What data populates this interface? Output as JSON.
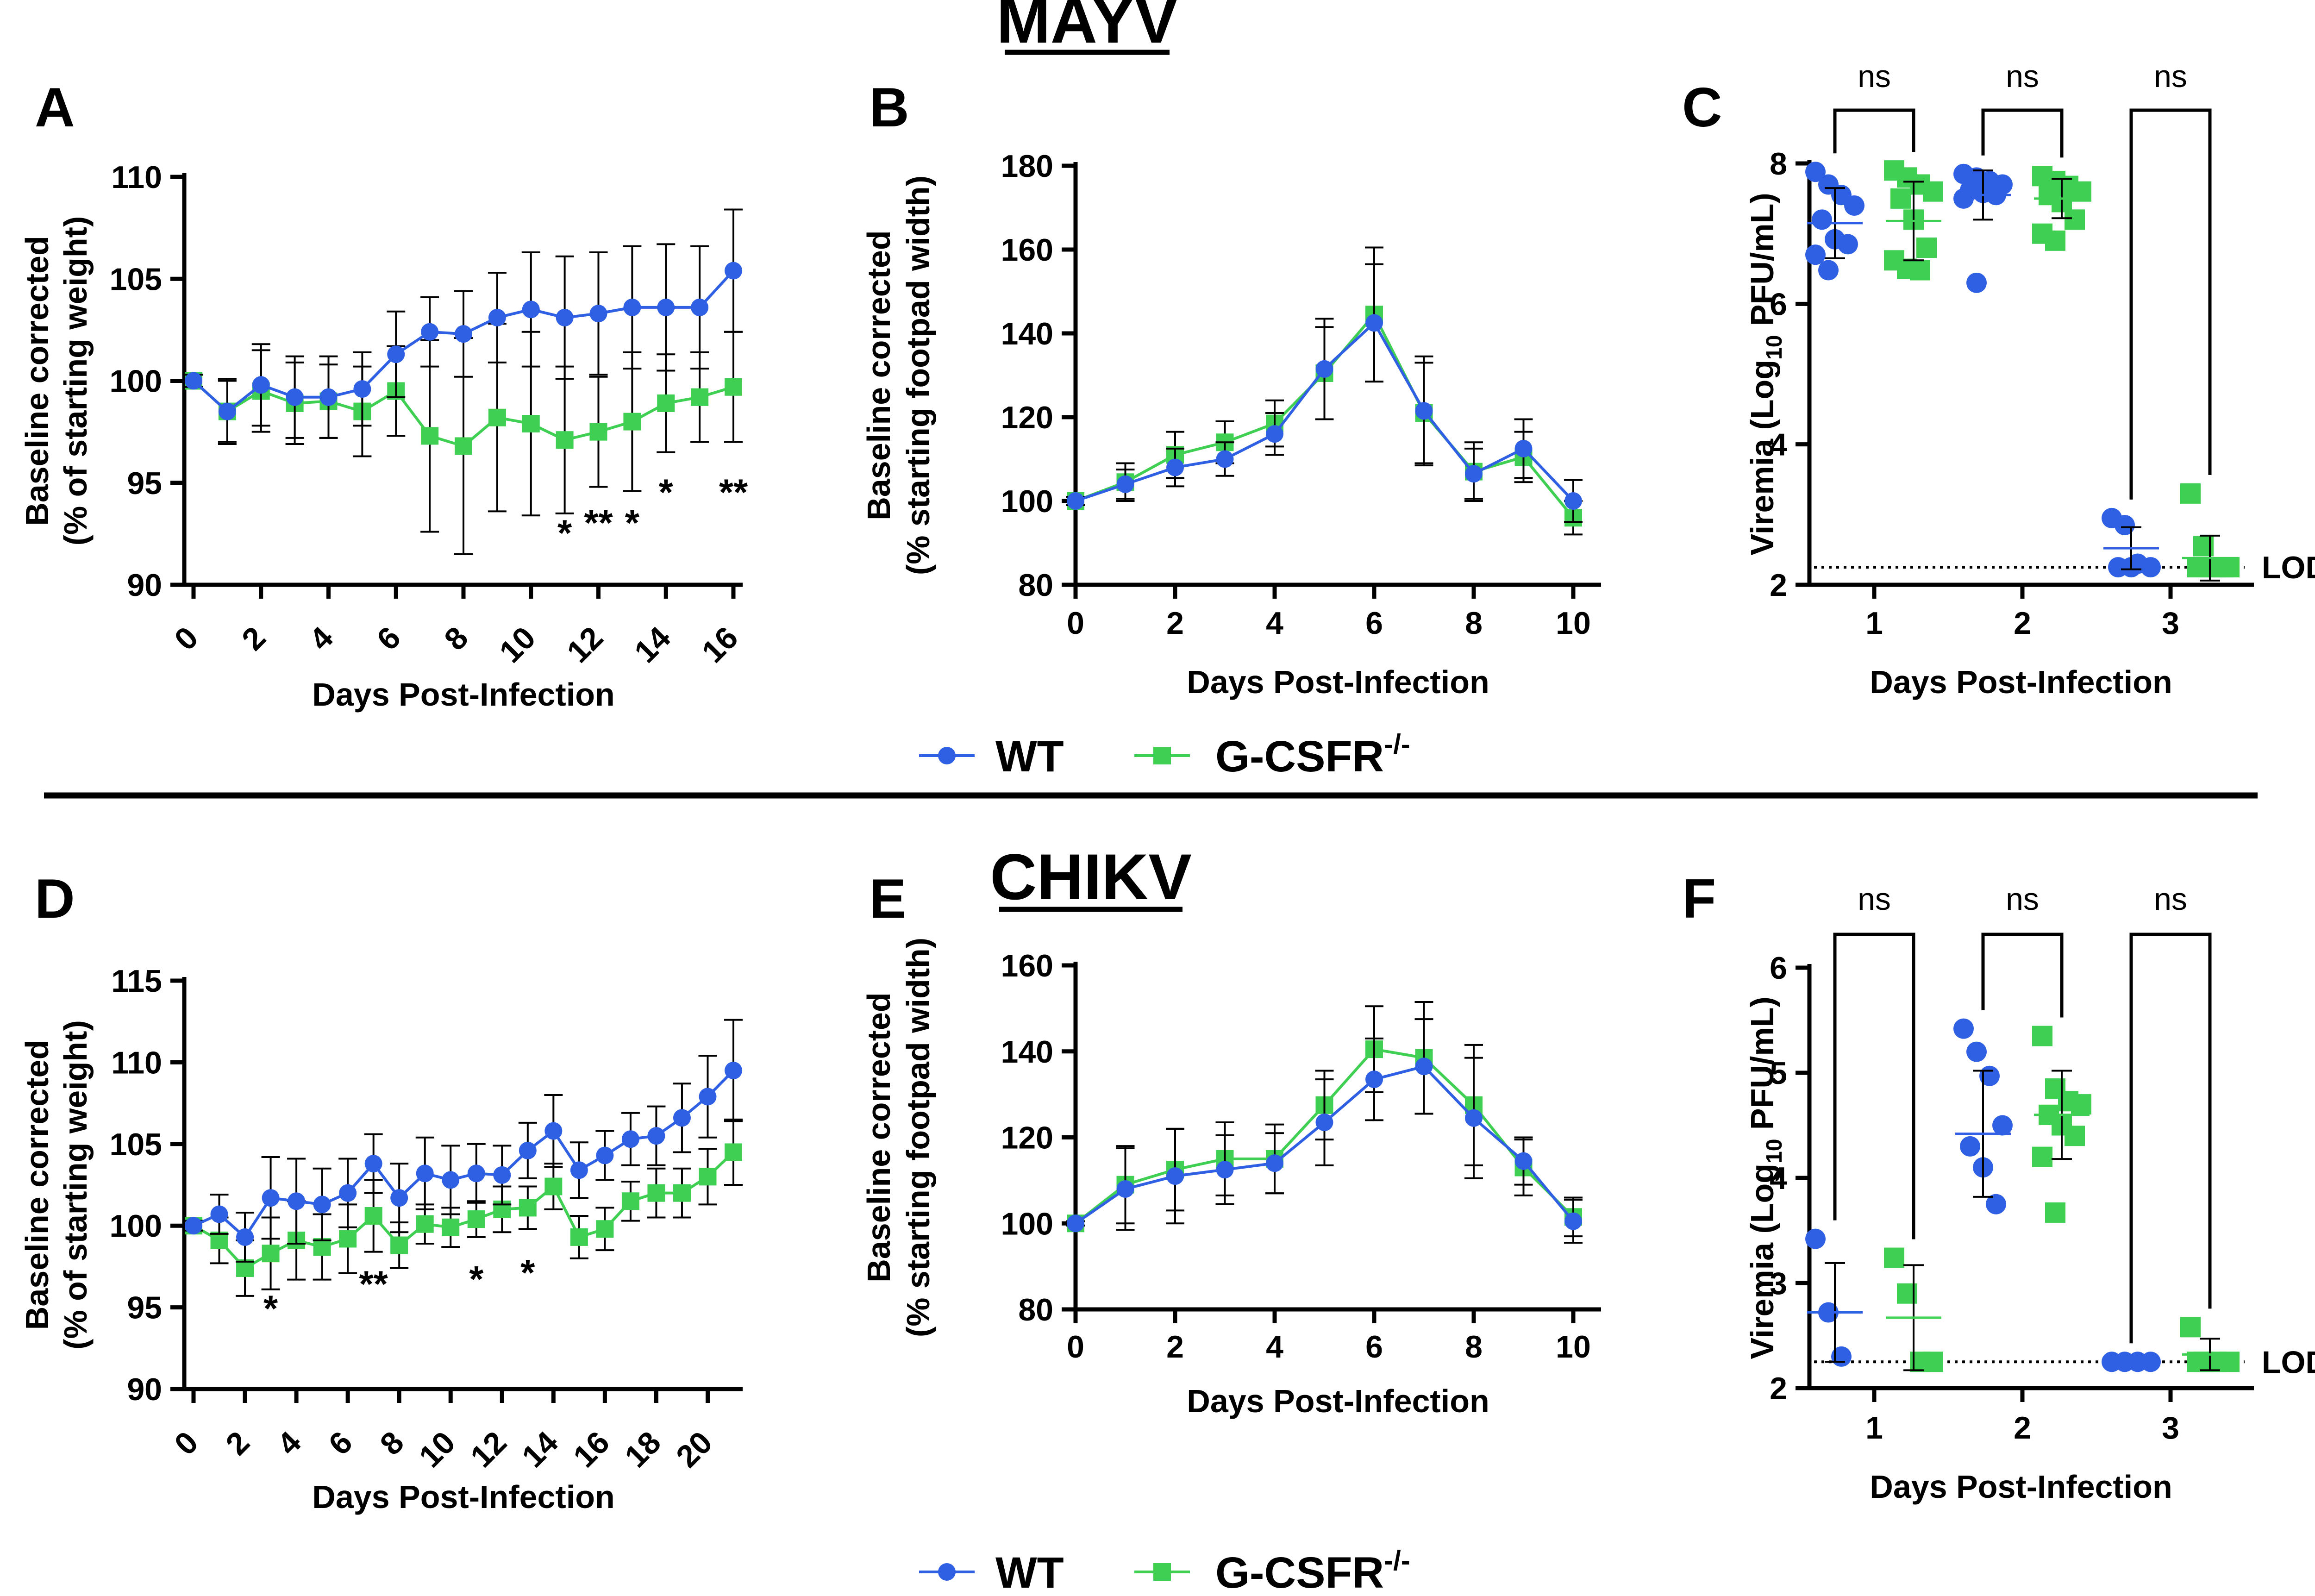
{
  "colors": {
    "wt": "#2f5fe3",
    "gcsfr": "#3fcf52",
    "axis": "#000000"
  },
  "top_title": "MAYV",
  "bottom_title": "CHIKV",
  "legend": {
    "wt": "WT",
    "gcsfr": "G-CSFR",
    "gcsfr_sup": "-/-"
  },
  "chart_data": [
    {
      "id": "A",
      "type": "line",
      "panel_label": "A",
      "ylabel1": "Baseline corrected",
      "ylabel2": "(% of starting weight)",
      "xlabel": "Days Post-Infection",
      "ylim": [
        90,
        110
      ],
      "yticks": [
        90,
        95,
        100,
        105,
        110
      ],
      "xlim": [
        0,
        16
      ],
      "xticks": [
        0,
        2,
        4,
        6,
        8,
        10,
        12,
        14,
        16
      ],
      "x": [
        0,
        1,
        2,
        3,
        4,
        5,
        6,
        7,
        8,
        9,
        10,
        11,
        12,
        13,
        14,
        15,
        16
      ],
      "series": [
        {
          "name": "WT",
          "values": [
            100,
            98.5,
            99.8,
            99.2,
            99.2,
            99.6,
            101.3,
            102.4,
            102.3,
            103.1,
            103.5,
            103.1,
            103.3,
            103.6,
            103.6,
            103.6,
            105.4
          ],
          "err": [
            0.3,
            1.5,
            2,
            2,
            2,
            1.8,
            2.1,
            1.7,
            2.1,
            2.2,
            2.8,
            3,
            3,
            3,
            3.1,
            3,
            3
          ]
        },
        {
          "name": "G-CSFR-/-",
          "values": [
            100,
            98.5,
            99.5,
            98.9,
            99,
            98.5,
            99.5,
            97.3,
            96.8,
            98.2,
            97.9,
            97.1,
            97.5,
            98,
            98.9,
            99.2,
            99.7
          ],
          "err": [
            0.3,
            1.6,
            2,
            2,
            1.8,
            2.2,
            2.2,
            4.7,
            5.3,
            4.6,
            4.5,
            3.6,
            2.7,
            3.4,
            2.4,
            2.2,
            2.7
          ]
        }
      ],
      "annotations": [
        {
          "x": 11,
          "y": 92.6,
          "text": "*"
        },
        {
          "x": 12,
          "y": 93.1,
          "text": "**"
        },
        {
          "x": 13,
          "y": 93.1,
          "text": "*"
        },
        {
          "x": 14,
          "y": 94.6,
          "text": "*"
        },
        {
          "x": 16,
          "y": 94.6,
          "text": "**"
        }
      ]
    },
    {
      "id": "B",
      "type": "line",
      "panel_label": "B",
      "ylabel1": "Baseline corrected",
      "ylabel2": "(% starting footpad width)",
      "xlabel": "Days Post-Infection",
      "ylim": [
        80,
        180
      ],
      "yticks": [
        80,
        100,
        120,
        140,
        160,
        180
      ],
      "xlim": [
        0,
        10
      ],
      "xticks": [
        0,
        2,
        4,
        6,
        8,
        10
      ],
      "x": [
        0,
        1,
        2,
        3,
        4,
        5,
        6,
        7,
        8,
        9,
        10
      ],
      "series": [
        {
          "name": "WT",
          "values": [
            100,
            104,
            108,
            110,
            116,
            131.5,
            142.5,
            121.5,
            106.5,
            112.5,
            100
          ],
          "err": [
            1,
            3.5,
            4.5,
            4,
            5,
            12,
            14,
            13,
            6,
            7,
            5
          ]
        },
        {
          "name": "G-CSFR-/-",
          "values": [
            100,
            104.5,
            111,
            114,
            118.5,
            130.5,
            144.5,
            121,
            107,
            110.5,
            96
          ],
          "err": [
            1,
            4.5,
            5.5,
            5,
            5.5,
            11,
            16,
            12,
            7,
            6,
            4
          ]
        }
      ]
    },
    {
      "id": "C",
      "type": "scatter",
      "panel_label": "C",
      "ylabel": "Viremia (Log10 PFU/mL)",
      "ylabel_main": "Viremia (Log",
      "ylabel_sub": "10",
      "ylabel_end": " PFU/mL)",
      "xlabel": "Days Post-Infection",
      "ylim": [
        2,
        8
      ],
      "yticks": [
        2,
        4,
        6,
        8
      ],
      "categories": [
        "1",
        "2",
        "3"
      ],
      "lod": 2.25,
      "lod_label": "LOD",
      "groups": [
        {
          "name": "WT",
          "day": 1,
          "points": [
            7.88,
            7.7,
            7.55,
            7.4,
            7.2,
            6.92,
            6.85,
            6.7,
            6.48
          ],
          "mean": 7.15,
          "sd": 0.5
        },
        {
          "name": "G-CSFR-/-",
          "day": 1,
          "points": [
            7.9,
            7.8,
            7.7,
            7.6,
            7.5,
            7.2,
            6.8,
            6.62,
            6.5,
            6.48
          ],
          "mean": 7.18,
          "sd": 0.56
        },
        {
          "name": "WT",
          "day": 2,
          "points": [
            7.85,
            7.8,
            7.75,
            7.7,
            7.62,
            7.58,
            7.55,
            7.5,
            6.3
          ],
          "mean": 7.55,
          "sd": 0.35
        },
        {
          "name": "G-CSFR-/-",
          "day": 2,
          "points": [
            7.82,
            7.75,
            7.68,
            7.6,
            7.55,
            7.45,
            7.2,
            7.0,
            6.9
          ],
          "mean": 7.5,
          "sd": 0.28
        },
        {
          "name": "WT",
          "day": 3,
          "points": [
            2.95,
            2.85,
            2.3,
            2.25,
            2.25,
            2.25
          ],
          "mean": 2.52,
          "sd": 0.3
        },
        {
          "name": "G-CSFR-/-",
          "day": 3,
          "points": [
            3.3,
            2.55,
            2.25,
            2.25,
            2.25,
            2.25,
            2.25
          ],
          "mean": 2.38,
          "sd": 0.32
        }
      ],
      "significance": [
        "ns",
        "ns",
        "ns"
      ]
    },
    {
      "id": "D",
      "type": "line",
      "panel_label": "D",
      "ylabel1": "Baseline corrected",
      "ylabel2": "(% of starting weight)",
      "xlabel": "Days Post-Infection",
      "ylim": [
        90,
        115
      ],
      "yticks": [
        90,
        95,
        100,
        105,
        110,
        115
      ],
      "xlim": [
        0,
        21
      ],
      "xticks": [
        0,
        2,
        4,
        6,
        8,
        10,
        12,
        14,
        16,
        18,
        20
      ],
      "x": [
        0,
        1,
        2,
        3,
        4,
        5,
        6,
        7,
        8,
        9,
        10,
        11,
        12,
        13,
        14,
        15,
        16,
        17,
        18,
        19,
        20,
        21
      ],
      "series": [
        {
          "name": "WT",
          "values": [
            100,
            100.7,
            99.3,
            101.7,
            101.5,
            101.3,
            102,
            103.8,
            101.7,
            103.2,
            102.8,
            103.2,
            103.1,
            104.6,
            105.8,
            103.4,
            104.3,
            105.3,
            105.5,
            106.6,
            107.9,
            109.5
          ],
          "err": [
            0.3,
            1.2,
            1.5,
            2.5,
            2.6,
            2.2,
            2.1,
            1.8,
            2.1,
            2.2,
            2.1,
            1.8,
            1.8,
            1.7,
            2.2,
            1.7,
            1.5,
            1.6,
            1.8,
            2.1,
            2.5,
            3.1
          ]
        },
        {
          "name": "G-CSFR-/-",
          "values": [
            100,
            99.1,
            97.4,
            98.3,
            99.1,
            98.7,
            99.2,
            100.6,
            98.8,
            100.1,
            99.9,
            100.4,
            101,
            101.1,
            102.4,
            99.3,
            99.8,
            101.5,
            102,
            102,
            103,
            104.5
          ],
          "err": [
            0.3,
            1.4,
            1.7,
            2.2,
            2.4,
            2,
            2.1,
            2.2,
            1.4,
            1.2,
            1.2,
            1.1,
            1.4,
            1.3,
            1.4,
            1.3,
            1.3,
            1.2,
            1.5,
            1.5,
            1.7,
            2
          ]
        }
      ],
      "annotations": [
        {
          "x": 3,
          "y": 95,
          "text": "*"
        },
        {
          "x": 7,
          "y": 96.5,
          "text": "**"
        },
        {
          "x": 11,
          "y": 96.8,
          "text": "*"
        },
        {
          "x": 13,
          "y": 97.2,
          "text": "*"
        }
      ]
    },
    {
      "id": "E",
      "type": "line",
      "panel_label": "E",
      "ylabel1": "Baseline corrected",
      "ylabel2": "(% starting footpad width)",
      "xlabel": "Days Post-Infection",
      "ylim": [
        80,
        160
      ],
      "yticks": [
        80,
        100,
        120,
        140,
        160
      ],
      "xlim": [
        0,
        10
      ],
      "xticks": [
        0,
        2,
        4,
        6,
        8,
        10
      ],
      "x": [
        0,
        1,
        2,
        3,
        4,
        5,
        6,
        7,
        8,
        9,
        10
      ],
      "series": [
        {
          "name": "WT",
          "values": [
            100,
            108,
            111,
            112.5,
            114,
            123.5,
            133.5,
            136.5,
            124.5,
            114.5,
            100.5
          ],
          "err": [
            0.5,
            9.5,
            11,
            8,
            7,
            10,
            9.5,
            11,
            14,
            5.5,
            5
          ]
        },
        {
          "name": "G-CSFR-/-",
          "values": [
            100,
            109,
            112.5,
            115,
            115,
            127.5,
            140.5,
            138.5,
            127.5,
            113,
            101.5
          ],
          "err": [
            0.5,
            9,
            9.5,
            8.5,
            8,
            8,
            10,
            13,
            14,
            6.5,
            4.5
          ]
        }
      ]
    },
    {
      "id": "F",
      "type": "scatter",
      "panel_label": "F",
      "ylabel": "Viremia (Log10 PFU/mL)",
      "ylabel_main": "Viremia (Log",
      "ylabel_sub": "10",
      "ylabel_end": " PFU/mL)",
      "xlabel": "Days Post-Infection",
      "ylim": [
        2,
        6
      ],
      "yticks": [
        2,
        3,
        4,
        5,
        6
      ],
      "categories": [
        "1",
        "2",
        "3"
      ],
      "lod": 2.25,
      "lod_label": "LOD",
      "groups": [
        {
          "name": "WT",
          "day": 1,
          "points": [
            3.42,
            2.72,
            2.3
          ],
          "mean": 2.72,
          "sd": 0.47
        },
        {
          "name": "G-CSFR-/-",
          "day": 1,
          "points": [
            3.24,
            2.9,
            2.25,
            2.25
          ],
          "mean": 2.67,
          "sd": 0.5
        },
        {
          "name": "WT",
          "day": 2,
          "points": [
            5.42,
            5.2,
            4.97,
            4.5,
            4.3,
            4.1,
            3.75
          ],
          "mean": 4.42,
          "sd": 0.6
        },
        {
          "name": "G-CSFR-/-",
          "day": 2,
          "points": [
            5.35,
            4.85,
            4.73,
            4.7,
            4.6,
            4.5,
            4.4,
            4.2,
            3.67
          ],
          "mean": 4.6,
          "sd": 0.42
        },
        {
          "name": "WT",
          "day": 3,
          "points": [
            2.25,
            2.25,
            2.25,
            2.25
          ],
          "mean": 2.25,
          "sd": 0
        },
        {
          "name": "G-CSFR-/-",
          "day": 3,
          "points": [
            2.58,
            2.25,
            2.25,
            2.25,
            2.25
          ],
          "mean": 2.32,
          "sd": 0.15
        }
      ],
      "significance": [
        "ns",
        "ns",
        "ns"
      ]
    }
  ]
}
